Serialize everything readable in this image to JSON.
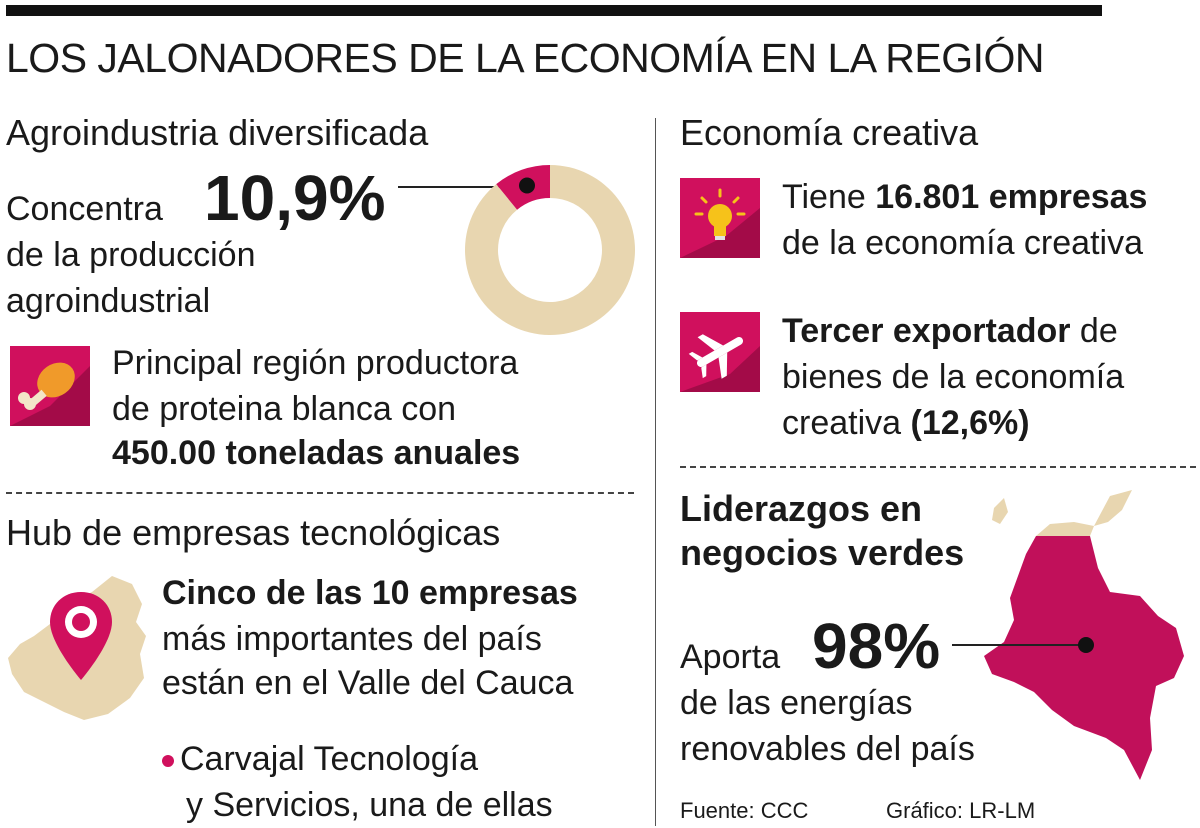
{
  "header": {
    "title": "LOS JALONADORES DE LA ECONOMÍA EN LA REGIÓN"
  },
  "colors": {
    "accent": "#d0105d",
    "beige": "#e8d6b0",
    "dark": "#1a1a1a"
  },
  "agro": {
    "heading": "Agroindustria diversificada",
    "concentra": "Concentra",
    "pct": "10,9%",
    "pct_value": 10.9,
    "line2": "de la producción",
    "line3": "agroindustrial",
    "protein_line1": "Principal región productora",
    "protein_line2": "de proteina blanca con",
    "protein_line3": "450.00 toneladas anuales",
    "icon": "chicken-leg-icon"
  },
  "hub": {
    "heading": "Hub de empresas tecnológicas",
    "line1": "Cinco de las 10 empresas",
    "line2": "más importantes del país",
    "line3": "están en el Valle del Cauca",
    "bullet_line1": "Carvajal Tecnología",
    "bullet_line2": "y Servicios, una de ellas",
    "icon": "map-pin-icon"
  },
  "creativa": {
    "heading": "Economía creativa",
    "item1_pre": "Tiene",
    "item1_bold": "16.801 empresas",
    "item1_line2": "de la economía creativa",
    "item1_icon": "lightbulb-icon",
    "item2_bold": "Tercer exportador",
    "item2_post": "de",
    "item2_line2": "bienes de la economía",
    "item2_line3_pre": "creativa",
    "item2_line3_bold": "(12,6%)",
    "item2_icon": "airplane-icon"
  },
  "verdes": {
    "heading_line1": "Liderazgos en",
    "heading_line2": "negocios verdes",
    "aporta": "Aporta",
    "pct": "98%",
    "line2": "de las energías",
    "line3": "renovables del país"
  },
  "footer": {
    "source": "Fuente: CCC",
    "credit": "Gráfico: LR-LM"
  }
}
